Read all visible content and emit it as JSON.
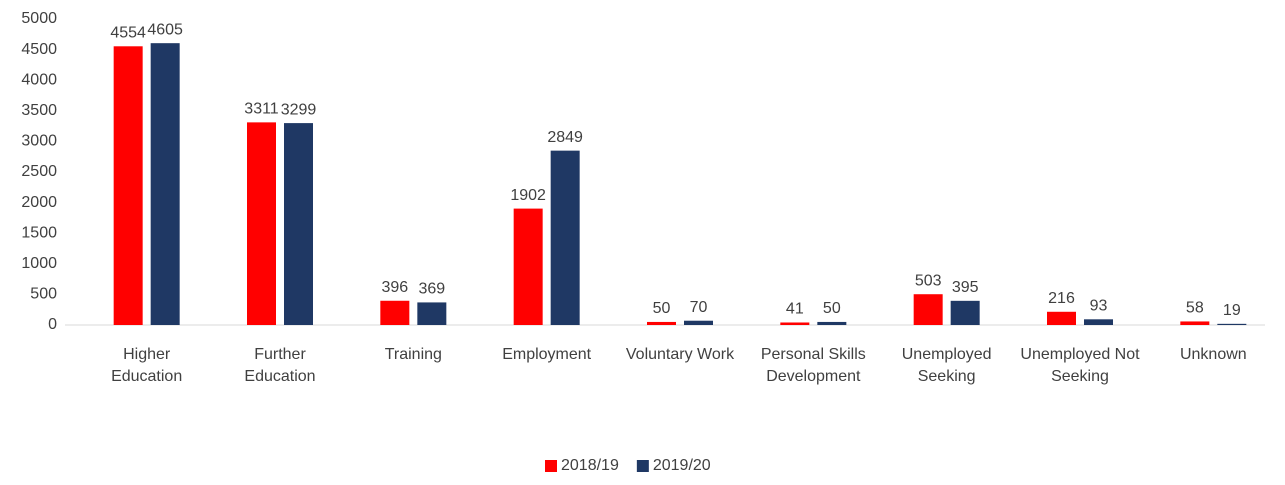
{
  "chart_data": {
    "type": "bar",
    "categories": [
      "Higher Education",
      "Further Education",
      "Training",
      "Employment",
      "Voluntary Work",
      "Personal Skills Development",
      "Unemployed Seeking",
      "Unemployed Not Seeking",
      "Unknown"
    ],
    "series": [
      {
        "name": "2018/19",
        "color": "#ff0000",
        "values": [
          4554,
          3311,
          396,
          1902,
          50,
          41,
          503,
          216,
          58
        ]
      },
      {
        "name": "2019/20",
        "color": "#1f3864",
        "values": [
          4605,
          3299,
          369,
          2849,
          70,
          50,
          395,
          93,
          19
        ]
      }
    ],
    "ylim": [
      0,
      5000
    ],
    "yticks": [
      0,
      500,
      1000,
      1500,
      2000,
      2500,
      3000,
      3500,
      4000,
      4500,
      5000
    ],
    "grid": false,
    "legend": "bottom"
  }
}
